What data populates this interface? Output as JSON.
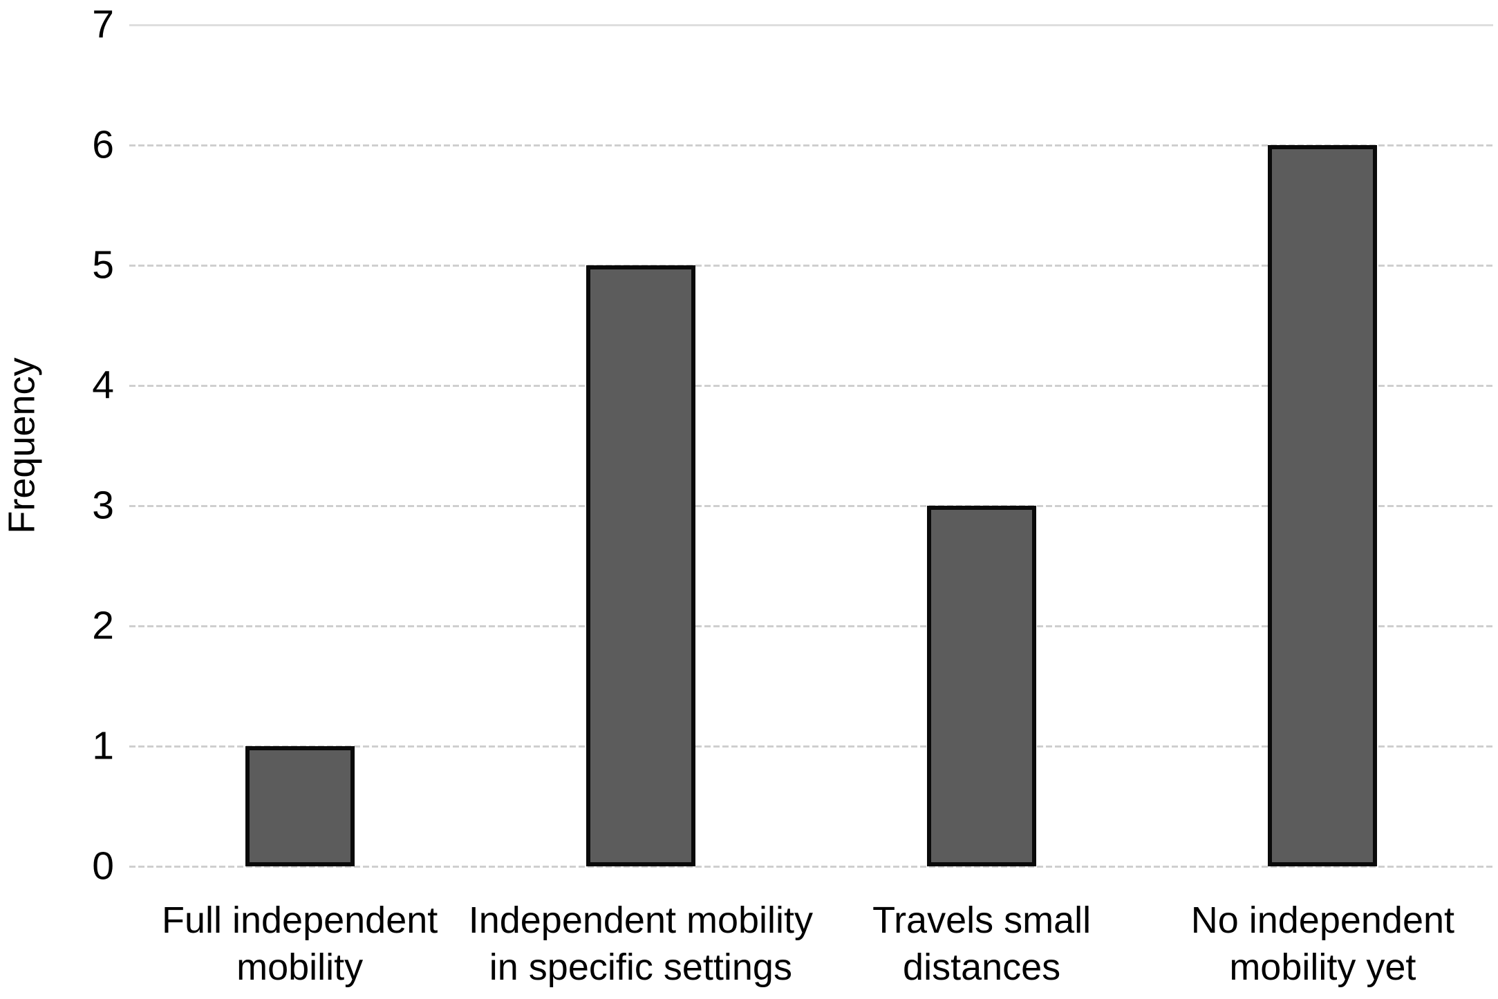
{
  "chart_data": {
    "type": "bar",
    "title": "",
    "xlabel": "",
    "ylabel": "Frequency",
    "categories": [
      "Full independent\nmobility",
      "Independent mobility\nin specific settings",
      "Travels small\ndistances",
      "No independent\nmobility yet"
    ],
    "values": [
      1,
      5,
      3,
      6
    ],
    "ylim": [
      0,
      7
    ],
    "yticks": [
      0,
      1,
      2,
      3,
      4,
      5,
      6,
      7
    ],
    "grid": true,
    "solid_gridline_at": 7,
    "legend": null,
    "colors": {
      "bar_fill": "#5c5c5c",
      "bar_border": "#0a0a0a",
      "gridline": "#cfcfcf",
      "gridline_solid": "#dedede",
      "text": "#000000",
      "background": "#ffffff"
    }
  }
}
